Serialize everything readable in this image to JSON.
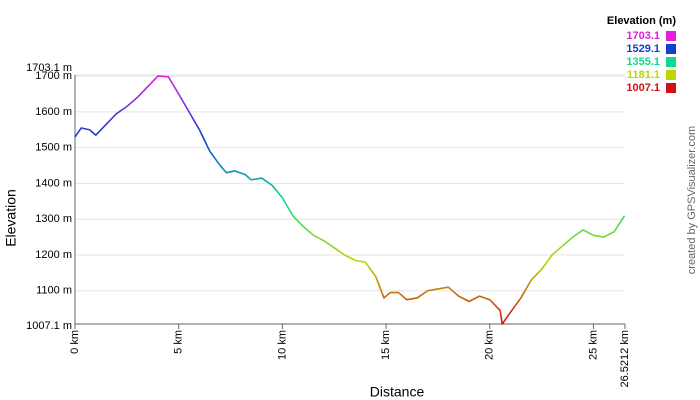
{
  "chart_data": {
    "type": "line",
    "y_label": "Elevation",
    "x_label": "Distance",
    "credit": "created by GPSVisualizer.com",
    "x": [
      0,
      0.3,
      0.7,
      1,
      1.5,
      2,
      2.5,
      3,
      3.5,
      4,
      4.5,
      5,
      5.5,
      6,
      6.5,
      7,
      7.3,
      7.7,
      8.2,
      8.5,
      9,
      9.5,
      10,
      10.5,
      11,
      11.5,
      12,
      12.5,
      13,
      13.5,
      14,
      14.5,
      14.9,
      15.2,
      15.6,
      16,
      16.5,
      17,
      17.5,
      18,
      18.5,
      19,
      19.5,
      20,
      20.5,
      20.6,
      21,
      21.5,
      22,
      22.5,
      23,
      23.5,
      24,
      24.5,
      25,
      25.5,
      26,
      26.5
    ],
    "values": [
      1530,
      1555,
      1550,
      1535,
      1565,
      1595,
      1615,
      1640,
      1670,
      1700,
      1698,
      1650,
      1600,
      1550,
      1490,
      1450,
      1430,
      1435,
      1425,
      1410,
      1415,
      1395,
      1360,
      1310,
      1280,
      1255,
      1240,
      1220,
      1200,
      1185,
      1180,
      1140,
      1080,
      1095,
      1095,
      1075,
      1080,
      1100,
      1105,
      1110,
      1085,
      1070,
      1085,
      1075,
      1045,
      1007,
      1040,
      1080,
      1130,
      1160,
      1200,
      1225,
      1250,
      1270,
      1255,
      1250,
      1265,
      1310
    ],
    "xlim": [
      0,
      26.5212
    ],
    "xticks": [
      {
        "value": 0,
        "label": "0 km"
      },
      {
        "value": 5,
        "label": "5 km"
      },
      {
        "value": 10,
        "label": "10 km"
      },
      {
        "value": 15,
        "label": "15 km"
      },
      {
        "value": 20,
        "label": "20 km"
      },
      {
        "value": 25,
        "label": "25 km"
      },
      {
        "value": 26.5212,
        "label": "26.5212 km"
      }
    ],
    "ylim": [
      1007.1,
      1703.1
    ],
    "yticks": [
      {
        "value": 1007.1,
        "label": "1007.1 m"
      },
      {
        "value": 1100,
        "label": "1100 m"
      },
      {
        "value": 1200,
        "label": "1200 m"
      },
      {
        "value": 1300,
        "label": "1300 m"
      },
      {
        "value": 1400,
        "label": "1400 m"
      },
      {
        "value": 1500,
        "label": "1500 m"
      },
      {
        "value": 1600,
        "label": "1600 m"
      },
      {
        "value": 1700,
        "label": "1700 m"
      },
      {
        "value": 1703.1,
        "label": "1703.1 m"
      }
    ],
    "grid": true,
    "color_scale": {
      "title": "Elevation (m)",
      "stops": [
        {
          "value": 1703.1,
          "color": "#e020e0"
        },
        {
          "value": 1529.1,
          "color": "#1040d0"
        },
        {
          "value": 1355.1,
          "color": "#10d890"
        },
        {
          "value": 1181.1,
          "color": "#b8d800"
        },
        {
          "value": 1007.1,
          "color": "#d01010"
        }
      ]
    }
  }
}
